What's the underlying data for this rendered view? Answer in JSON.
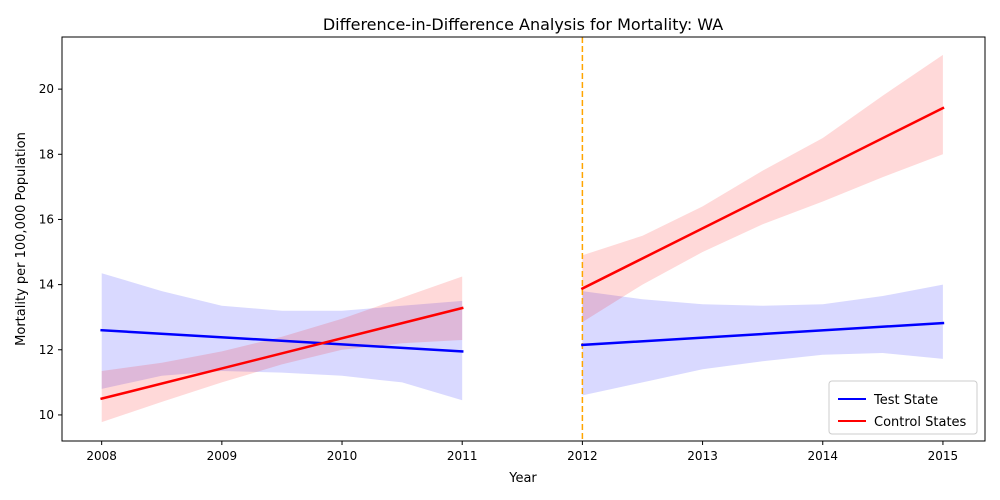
{
  "chart_data": {
    "type": "line",
    "title": "Difference-in-Difference Analysis for Mortality: WA",
    "xlabel": "Year",
    "ylabel": "Mortality per 100,000 Population",
    "xlim": [
      2007.67,
      2015.35
    ],
    "ylim": [
      9.2,
      21.6
    ],
    "x_ticks": [
      2008,
      2009,
      2010,
      2011,
      2012,
      2013,
      2014,
      2015
    ],
    "y_ticks": [
      10,
      12,
      14,
      16,
      18,
      20
    ],
    "intervention": {
      "x": 2012,
      "color": "#ffa500",
      "style": "dashed"
    },
    "legend_position": "bottom-right",
    "grid": false,
    "series": [
      {
        "name": "Test State",
        "color": "#0000ff",
        "band_color": "#0000ff",
        "segments": [
          {
            "x": [
              2008,
              2011
            ],
            "y": [
              12.6,
              11.95
            ],
            "band_x": [
              2008,
              2008.5,
              2009,
              2009.5,
              2010,
              2010.5,
              2011
            ],
            "band_lower": [
              10.8,
              11.2,
              11.35,
              11.3,
              11.2,
              11.0,
              10.45
            ],
            "band_upper": [
              14.35,
              13.8,
              13.35,
              13.2,
              13.2,
              13.35,
              13.5
            ]
          },
          {
            "x": [
              2012,
              2015
            ],
            "y": [
              12.15,
              12.82
            ],
            "band_x": [
              2012,
              2012.5,
              2013,
              2013.5,
              2014,
              2014.5,
              2015
            ],
            "band_lower": [
              10.6,
              11.0,
              11.4,
              11.65,
              11.85,
              11.9,
              11.72
            ],
            "band_upper": [
              13.8,
              13.55,
              13.4,
              13.35,
              13.4,
              13.65,
              14.0
            ]
          }
        ]
      },
      {
        "name": "Control States",
        "color": "#ff0000",
        "band_color": "#ff0000",
        "segments": [
          {
            "x": [
              2008,
              2011
            ],
            "y": [
              10.5,
              13.28
            ],
            "band_x": [
              2008,
              2008.5,
              2009,
              2009.5,
              2010,
              2010.5,
              2011
            ],
            "band_lower": [
              9.78,
              10.4,
              11.0,
              11.55,
              12.0,
              12.2,
              12.3
            ],
            "band_upper": [
              11.35,
              11.6,
              11.95,
              12.4,
              12.95,
              13.6,
              14.25
            ]
          },
          {
            "x": [
              2012,
              2015
            ],
            "y": [
              13.88,
              19.42
            ],
            "band_x": [
              2012,
              2012.5,
              2013,
              2013.5,
              2014,
              2014.5,
              2015
            ],
            "band_lower": [
              12.85,
              14.0,
              15.0,
              15.85,
              16.55,
              17.3,
              18.0
            ],
            "band_upper": [
              14.9,
              15.5,
              16.4,
              17.5,
              18.5,
              19.8,
              21.05
            ]
          }
        ]
      }
    ]
  }
}
